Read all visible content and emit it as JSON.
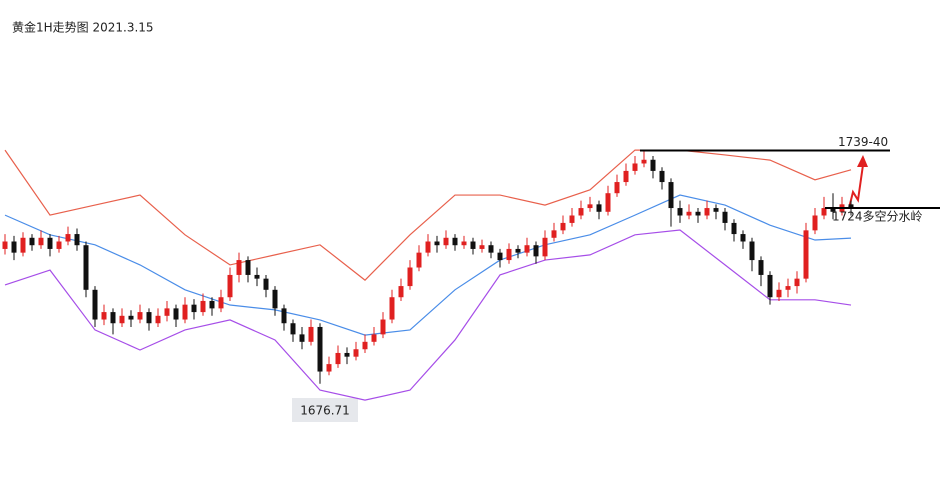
{
  "chart_data": {
    "type": "candlestick",
    "title": "黄金1H走势图 2021.3.15",
    "ylim": [
      1650,
      1780
    ],
    "up_color": "#e02020",
    "down_color": "#111111",
    "candles": [
      [
        1713,
        1717,
        1711.5,
        1715
      ],
      [
        1715,
        1716.5,
        1710,
        1712
      ],
      [
        1712,
        1717.5,
        1711,
        1716
      ],
      [
        1716,
        1717,
        1712.5,
        1714
      ],
      [
        1714,
        1718,
        1713,
        1716
      ],
      [
        1716,
        1717,
        1711,
        1713
      ],
      [
        1713,
        1716.5,
        1712,
        1715
      ],
      [
        1715,
        1719,
        1714,
        1717
      ],
      [
        1717,
        1718.5,
        1712.5,
        1714
      ],
      [
        1714,
        1715,
        1700,
        1702
      ],
      [
        1702,
        1703,
        1692,
        1694
      ],
      [
        1694,
        1698,
        1692.5,
        1696
      ],
      [
        1696,
        1697,
        1690,
        1693
      ],
      [
        1693,
        1697,
        1692,
        1695
      ],
      [
        1695,
        1696.5,
        1692,
        1694
      ],
      [
        1694,
        1698,
        1693,
        1696
      ],
      [
        1696,
        1697,
        1691,
        1693
      ],
      [
        1693,
        1697,
        1692,
        1695
      ],
      [
        1695,
        1699,
        1693.5,
        1697
      ],
      [
        1697,
        1698,
        1692,
        1694
      ],
      [
        1694,
        1700,
        1693,
        1698
      ],
      [
        1698,
        1699.5,
        1694,
        1696
      ],
      [
        1696,
        1701,
        1695,
        1699
      ],
      [
        1699,
        1700,
        1695,
        1697
      ],
      [
        1697,
        1702,
        1696,
        1700
      ],
      [
        1700,
        1708,
        1699,
        1706
      ],
      [
        1706,
        1712,
        1704,
        1710
      ],
      [
        1710,
        1711,
        1704,
        1706
      ],
      [
        1706,
        1708,
        1703,
        1705
      ],
      [
        1705,
        1706,
        1700,
        1702
      ],
      [
        1702,
        1703,
        1695,
        1697
      ],
      [
        1697,
        1698,
        1691,
        1693
      ],
      [
        1693,
        1694,
        1688,
        1690
      ],
      [
        1690,
        1692,
        1686,
        1688
      ],
      [
        1688,
        1694,
        1687,
        1692
      ],
      [
        1692,
        1693,
        1676.71,
        1680
      ],
      [
        1680,
        1684,
        1679,
        1682
      ],
      [
        1682,
        1687,
        1681,
        1685
      ],
      [
        1685,
        1686.5,
        1682,
        1684
      ],
      [
        1684,
        1688,
        1683,
        1686
      ],
      [
        1686,
        1690,
        1685,
        1688
      ],
      [
        1688,
        1692,
        1687,
        1690
      ],
      [
        1690,
        1696,
        1689,
        1694
      ],
      [
        1694,
        1702,
        1693,
        1700
      ],
      [
        1700,
        1705,
        1699,
        1703
      ],
      [
        1703,
        1710,
        1702,
        1708
      ],
      [
        1708,
        1714,
        1707,
        1712
      ],
      [
        1712,
        1717,
        1711,
        1715
      ],
      [
        1715,
        1716.5,
        1712,
        1714
      ],
      [
        1714,
        1718,
        1713,
        1716
      ],
      [
        1716,
        1717,
        1712.5,
        1714
      ],
      [
        1714,
        1716.5,
        1713,
        1715
      ],
      [
        1715,
        1716,
        1711.5,
        1713
      ],
      [
        1713,
        1715.5,
        1712,
        1714
      ],
      [
        1714,
        1715,
        1710.5,
        1712
      ],
      [
        1712,
        1713,
        1708,
        1710
      ],
      [
        1710,
        1714.5,
        1709,
        1713
      ],
      [
        1713,
        1714,
        1710.5,
        1712
      ],
      [
        1712,
        1716,
        1711,
        1714
      ],
      [
        1714,
        1715,
        1709,
        1711
      ],
      [
        1711,
        1718,
        1710,
        1716
      ],
      [
        1716,
        1720,
        1715,
        1718
      ],
      [
        1718,
        1722,
        1717,
        1720
      ],
      [
        1720,
        1724,
        1719,
        1722
      ],
      [
        1722,
        1726,
        1721,
        1724
      ],
      [
        1724,
        1727,
        1723,
        1725
      ],
      [
        1725,
        1726,
        1721,
        1723
      ],
      [
        1723,
        1730,
        1722,
        1728
      ],
      [
        1728,
        1733,
        1727,
        1731
      ],
      [
        1731,
        1736,
        1730,
        1734
      ],
      [
        1734,
        1738,
        1733,
        1736
      ],
      [
        1736,
        1739.5,
        1735,
        1737
      ],
      [
        1737,
        1738,
        1732,
        1734
      ],
      [
        1734,
        1735,
        1729,
        1731
      ],
      [
        1731,
        1732,
        1719,
        1724
      ],
      [
        1724,
        1726,
        1720,
        1722
      ],
      [
        1722,
        1725,
        1721,
        1723
      ],
      [
        1723,
        1724,
        1720,
        1722
      ],
      [
        1722,
        1726,
        1721,
        1724
      ],
      [
        1724,
        1725,
        1721,
        1723
      ],
      [
        1723,
        1724,
        1718,
        1720
      ],
      [
        1720,
        1721,
        1715,
        1717
      ],
      [
        1717,
        1718,
        1713,
        1715
      ],
      [
        1715,
        1716,
        1707,
        1710
      ],
      [
        1710,
        1711,
        1703,
        1706
      ],
      [
        1706,
        1707,
        1698,
        1700
      ],
      [
        1700,
        1704,
        1699,
        1702
      ],
      [
        1702,
        1705,
        1700,
        1703
      ],
      [
        1703,
        1707,
        1701,
        1705
      ],
      [
        1705,
        1720,
        1704,
        1718
      ],
      [
        1718,
        1724,
        1717,
        1722
      ],
      [
        1722,
        1727,
        1721,
        1724
      ],
      [
        1724,
        1728,
        1721,
        1723
      ],
      [
        1723,
        1727,
        1722,
        1725
      ],
      [
        1725,
        1726,
        1722,
        1724
      ]
    ],
    "bands": [
      {
        "color": "#e8604c",
        "x": [
          0,
          5,
          10,
          15,
          20,
          25,
          30,
          35,
          40,
          45,
          50,
          55,
          60,
          65,
          70,
          75,
          80,
          85,
          90,
          94
        ],
        "values": [
          1739.6,
          1722.1,
          1724.8,
          1727.5,
          1716.8,
          1708.7,
          1711.4,
          1714.1,
          1704.6,
          1716.8,
          1727.5,
          1727.5,
          1724.8,
          1728.9,
          1739.6,
          1739.6,
          1738.3,
          1736.9,
          1731.6,
          1734.3
        ]
      },
      {
        "color": "#4a8de8",
        "x": [
          0,
          5,
          10,
          15,
          20,
          25,
          30,
          35,
          40,
          45,
          50,
          55,
          60,
          65,
          70,
          75,
          80,
          85,
          90,
          94
        ],
        "values": [
          1722.1,
          1716.8,
          1714.1,
          1708.7,
          1702.0,
          1697.9,
          1696.6,
          1693.9,
          1689.8,
          1691.2,
          1702.0,
          1710.0,
          1714.1,
          1716.8,
          1722.1,
          1727.5,
          1724.8,
          1719.4,
          1715.4,
          1715.9
        ]
      },
      {
        "color": "#a64ee8",
        "x": [
          0,
          5,
          10,
          15,
          20,
          25,
          30,
          35,
          40,
          45,
          50,
          55,
          60,
          65,
          70,
          75,
          80,
          85,
          90,
          94
        ],
        "values": [
          1703.3,
          1707.3,
          1691.2,
          1685.8,
          1691.2,
          1693.9,
          1688.5,
          1675.0,
          1672.3,
          1675.0,
          1688.5,
          1706.0,
          1710.0,
          1711.4,
          1716.8,
          1718.1,
          1708.7,
          1699.3,
          1699.3,
          1697.9
        ]
      }
    ],
    "levels": [
      {
        "value": 1739.5,
        "label": "1739-40"
      },
      {
        "value": 1724,
        "label": "1724多空分水岭"
      }
    ]
  }
}
